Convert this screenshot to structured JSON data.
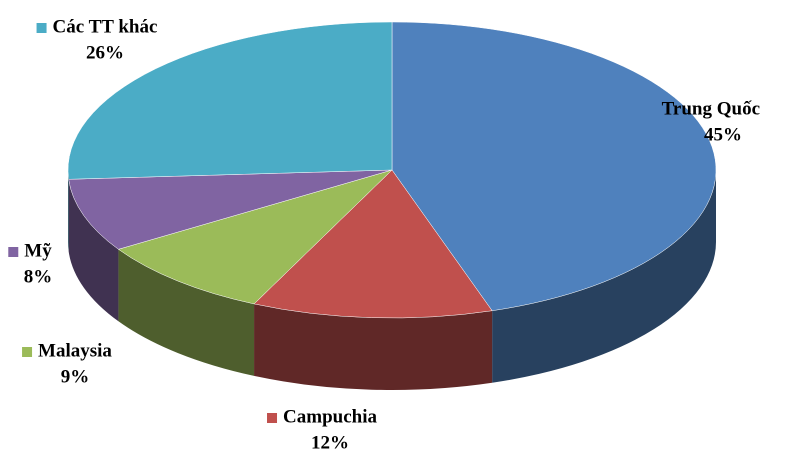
{
  "chart_data": {
    "type": "pie",
    "categories": [
      "Trung Quốc",
      "Campuchia",
      "Malaysia",
      "Mỹ",
      "Các TT khác"
    ],
    "values": [
      45,
      12,
      9,
      8,
      26
    ],
    "value_labels": [
      "45%",
      "12%",
      "9%",
      "8%",
      "26%"
    ],
    "colors": [
      "#4f81bd",
      "#c0504d",
      "#9bbb59",
      "#8064a2",
      "#4bacc6"
    ]
  }
}
